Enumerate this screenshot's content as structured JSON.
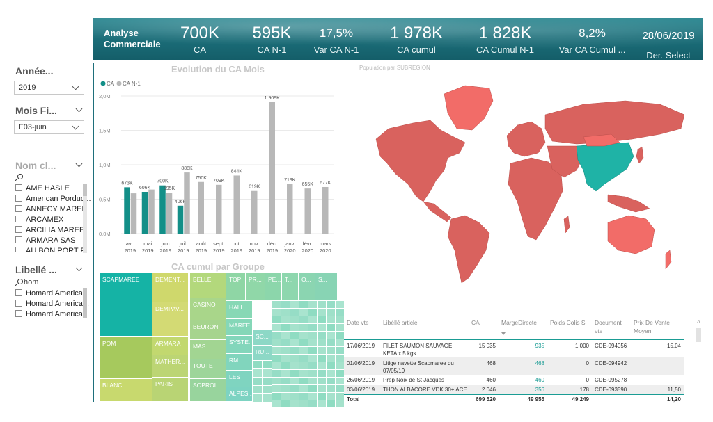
{
  "header": {
    "title": "Analyse\nCommerciale",
    "kpis": [
      {
        "value": "700K",
        "label": "CA"
      },
      {
        "value": "595K",
        "label": "CA N-1"
      },
      {
        "value": "17,5%",
        "label": "Var CA N-1"
      },
      {
        "value": "1 978K",
        "label": "CA cumul"
      },
      {
        "value": "1 828K",
        "label": "CA Cumul N-1"
      },
      {
        "value": "8,2%",
        "label": "Var CA Cumul ..."
      },
      {
        "value": "28/06/2019",
        "label": "Der. Select"
      }
    ]
  },
  "slicers": {
    "annee": {
      "title": "Année...",
      "value": "2019"
    },
    "mois": {
      "title": "Mois Fi...",
      "value": "F03-juin"
    },
    "nom_client": {
      "title": "Nom cl...",
      "items": [
        "AME HASLE",
        "American Porduc...",
        "ANNECY MAREE",
        "ARCAMEX",
        "ARCILIA MAREE",
        "ARMARA SAS",
        "AU BON PORT P..."
      ]
    },
    "libelle": {
      "title": "Libellé ...",
      "search_value": "hom",
      "items": [
        "Homard America...",
        "Homard America...",
        "Homard America..."
      ]
    }
  },
  "bar_chart": {
    "title": "Evolution du CA Mois",
    "colors": {
      "ca": "#138f88",
      "ca_n1": "#b8b8b8"
    }
  },
  "chart_data": [
    {
      "type": "bar",
      "title": "Evolution du CA Mois",
      "categories": [
        "avr. 2019",
        "mai 2019",
        "juin 2019",
        "juil. 2019",
        "août 2019",
        "sept. 2019",
        "oct. 2019",
        "nov. 2019",
        "déc. 2019",
        "janv. 2020",
        "févr. 2020",
        "mars 2020"
      ],
      "series": [
        {
          "name": "CA",
          "values": [
            673,
            606,
            700,
            406,
            null,
            null,
            null,
            null,
            null,
            null,
            null,
            null
          ],
          "labels": [
            "673K",
            "606K",
            "700K",
            "406K",
            "",
            "",
            "",
            "",
            "",
            "",
            "",
            ""
          ]
        },
        {
          "name": "CA N-1",
          "values": [
            585,
            640,
            595,
            888,
            750,
            709,
            844,
            619,
            1909,
            719,
            655,
            677
          ],
          "labels": [
            "",
            "",
            "595K",
            "888K",
            "750K",
            "709K",
            "844K",
            "619K",
            "1 909K",
            "719K",
            "655K",
            "677K"
          ]
        }
      ],
      "yticks": [
        "0,0M",
        "0,5M",
        "1,0M",
        "1,5M",
        "2,0M"
      ],
      "ylim": [
        0,
        2000
      ],
      "legend": "top-left"
    },
    {
      "type": "heatmap",
      "title": "CA cumul par Groupe",
      "labels": [
        "SCAPMAREE",
        "POM",
        "BLANC",
        "DEMENT...",
        "DEMPAV...",
        "ARMARA",
        "MATHER...",
        "PARIS",
        "BELLE",
        "CASINO",
        "BEURON",
        "MAS",
        "TOUTE",
        "SOPROL...",
        "TOP",
        "PR...",
        "PE...",
        "T...",
        "O...",
        "S...",
        "HALL...",
        "MAREE",
        "SYSTE...",
        "RM",
        "LES",
        "ALPES...",
        "SC...",
        "RU..."
      ]
    }
  ],
  "map": {
    "title": "Population par SUBREGION",
    "colors": {
      "default": "#d9625e",
      "highlight": "#1fb3a6",
      "light": "#f26c68"
    }
  },
  "table": {
    "headers": [
      "Date vte",
      "Libéllé article",
      "CA",
      "MargeDirecte",
      "Poids Colis S",
      "Document vte",
      "Prix De Vente Moyen"
    ],
    "rows": [
      {
        "date": "17/06/2019",
        "article": "FILET SAUMON SAUVAGE KETA x 5 kgs",
        "ca": "15 035",
        "marge": "935",
        "poids": "1 000",
        "doc": "CDE-094056",
        "prix": "15,04"
      },
      {
        "date": "01/06/2019",
        "article": "Litige navette Scapmaree du 07/05/19",
        "ca": "468",
        "marge": "468",
        "poids": "0",
        "doc": "CDE-094942",
        "prix": ""
      },
      {
        "date": "26/06/2019",
        "article": "Prep Noix de St Jacques",
        "ca": "460",
        "marge": "460",
        "poids": "0",
        "doc": "CDE-095278",
        "prix": ""
      },
      {
        "date": "03/06/2019",
        "article": "THON ALBACORE VDK 30+ ACE",
        "ca": "2 046",
        "marge": "356",
        "poids": "178",
        "doc": "CDE-093590",
        "prix": "11,50"
      }
    ],
    "total": {
      "label": "Total",
      "ca": "699 520",
      "marge": "49 955",
      "poids": "49 249",
      "prix": "14,20"
    }
  }
}
